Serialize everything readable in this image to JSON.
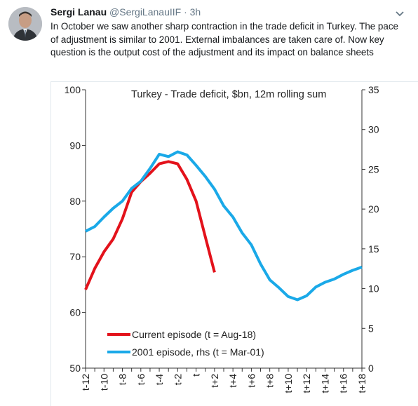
{
  "tweet": {
    "author_name": "Sergi Lanau",
    "author_handle": "@SergiLanauIIF",
    "separator": "·",
    "time": "3h",
    "text": "In October we saw another sharp contraction in the trade deficit in Turkey. The pace of adjustment is similar to 2001. External imbalances are taken care of. Now key question is the output cost of the adjustment and its impact on balance sheets",
    "avatar_icon": "user-avatar-photo",
    "menu_icon": "chevron-down-icon"
  },
  "colors": {
    "current": "#e3121b",
    "episode_2001": "#1aa9e8",
    "axis": "#333333"
  },
  "chart_data": {
    "type": "line",
    "title": "Turkey - Trade deficit, $bn, 12m rolling sum",
    "x_categories": [
      "t-12",
      "t-11",
      "t-10",
      "t-9",
      "t-8",
      "t-7",
      "t-6",
      "t-5",
      "t-4",
      "t-3",
      "t-2",
      "t-1",
      "t",
      "t+1",
      "t+2",
      "t+3",
      "t+4",
      "t+5",
      "t+6",
      "t+7",
      "t+8",
      "t+9",
      "t+10",
      "t+11",
      "t+12",
      "t+13",
      "t+14",
      "t+15",
      "t+16",
      "t+17",
      "t+18"
    ],
    "x_tick_labels": [
      "t-12",
      "t-10",
      "t-8",
      "t-6",
      "t-4",
      "t-2",
      "t",
      "t+2",
      "t+4",
      "t+6",
      "t+8",
      "t+10",
      "t+12",
      "t+14",
      "t+16",
      "t+18"
    ],
    "y_left": {
      "min": 50,
      "max": 100,
      "ticks": [
        50,
        60,
        70,
        80,
        90,
        100
      ]
    },
    "y_right": {
      "min": 0,
      "max": 35,
      "ticks": [
        0,
        5,
        10,
        15,
        20,
        25,
        30,
        35
      ]
    },
    "series": [
      {
        "name": "Current episode (t = Aug-18)",
        "axis": "left",
        "values": [
          64.1,
          67.9,
          70.9,
          73.2,
          76.8,
          81.6,
          83.5,
          85.0,
          86.7,
          87.1,
          86.7,
          83.9,
          80.0,
          73.6,
          67.2
        ]
      },
      {
        "name": "2001 episode, rhs (t = Mar-01)",
        "axis": "right",
        "values": [
          17.2,
          17.8,
          19.0,
          20.1,
          21.0,
          22.6,
          23.5,
          25.1,
          26.9,
          26.6,
          27.2,
          26.8,
          25.5,
          24.1,
          22.5,
          20.4,
          19.0,
          17.0,
          15.5,
          13.1,
          11.1,
          10.1,
          9.0,
          8.6,
          9.1,
          10.2,
          10.8,
          11.2,
          11.8,
          12.3,
          12.7
        ]
      }
    ],
    "legend_position": "bottom-left"
  }
}
